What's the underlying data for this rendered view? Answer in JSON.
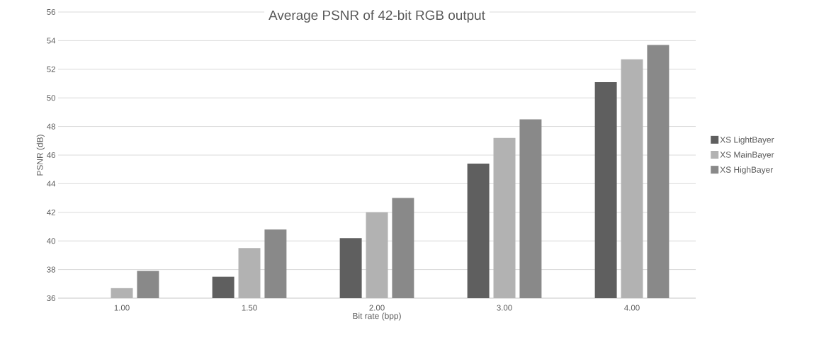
{
  "chart_data": {
    "type": "bar",
    "title": "Average PSNR of 42-bit RGB output",
    "xlabel": "Bit rate (bpp)",
    "ylabel": "PSNR (dB)",
    "categories": [
      "1.00",
      "1.50",
      "2.00",
      "3.00",
      "4.00"
    ],
    "series": [
      {
        "name": "XS LightBayer",
        "color": "#5f5f5f",
        "values": [
          36.0,
          37.5,
          40.2,
          45.4,
          51.1
        ]
      },
      {
        "name": "XS MainBayer",
        "color": "#b2b2b2",
        "values": [
          36.7,
          39.5,
          42.0,
          47.2,
          52.7
        ]
      },
      {
        "name": "XS HighBayer",
        "color": "#898989",
        "values": [
          37.9,
          40.8,
          43.0,
          48.5,
          53.7
        ]
      }
    ],
    "ylim": [
      36,
      56
    ],
    "yticks": [
      36,
      38,
      40,
      42,
      44,
      46,
      48,
      50,
      52,
      54,
      56
    ],
    "grid": "y",
    "legend": "right"
  }
}
